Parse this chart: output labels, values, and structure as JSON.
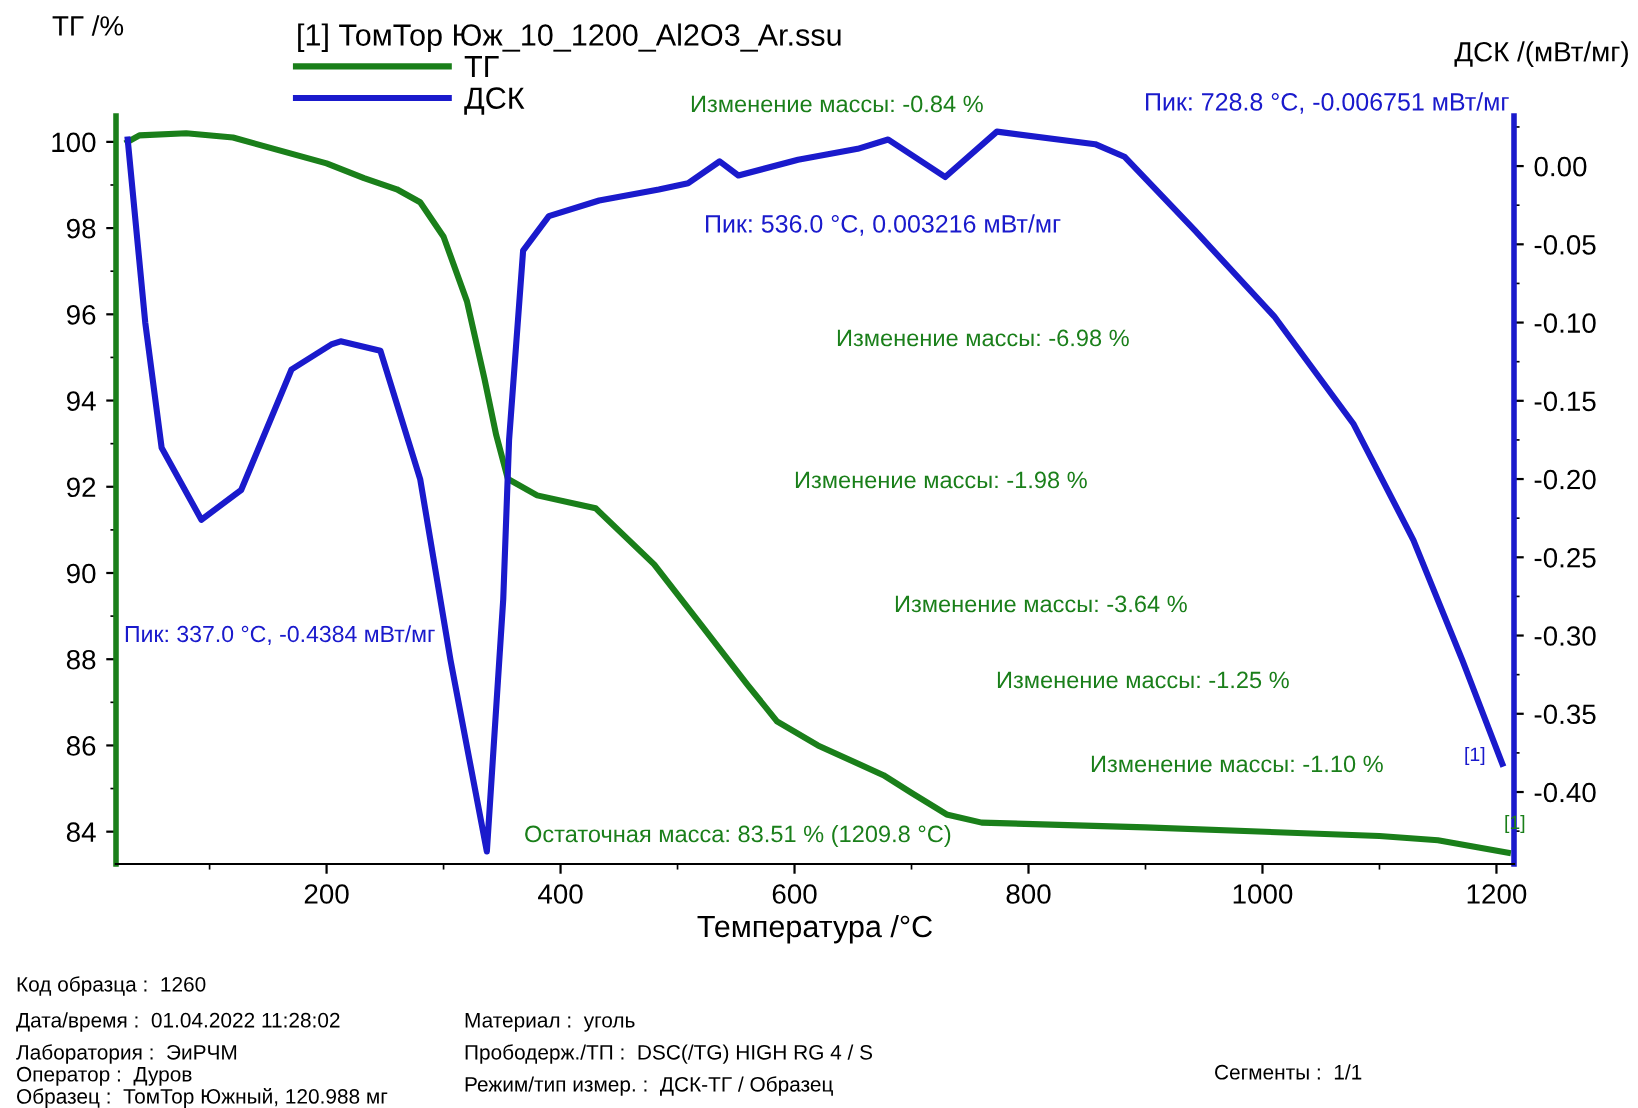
{
  "chart_data": {
    "type": "line",
    "legend_title": "[1] ТомТор Юж_10_1200_Al2O3_Ar.ssu",
    "xlabel": "Температура /°C",
    "ylabel": "ТГ /%",
    "y2label": "ДСК /(мВт/мг)",
    "xlim": [
      20,
      1215
    ],
    "ylim": [
      83.25,
      100.6
    ],
    "y2lim": [
      -0.446,
      0.032
    ],
    "xticks": [
      200,
      400,
      600,
      800,
      1000,
      1200
    ],
    "yticks": [
      84,
      86,
      88,
      90,
      92,
      94,
      96,
      98,
      100
    ],
    "y2ticks": [
      {
        "value": 0,
        "label": "0.00"
      },
      {
        "value": -0.05,
        "label": "-0.05"
      },
      {
        "value": -0.1,
        "label": "-0.10"
      },
      {
        "value": -0.15,
        "label": "-0.15"
      },
      {
        "value": -0.2,
        "label": "-0.20"
      },
      {
        "value": -0.25,
        "label": "-0.25"
      },
      {
        "value": -0.3,
        "label": "-0.30"
      },
      {
        "value": -0.35,
        "label": "-0.35"
      },
      {
        "value": -0.4,
        "label": "-0.40"
      }
    ],
    "grid": false,
    "legend": "top",
    "marker": "none",
    "line_style": "solid",
    "series": [
      {
        "name": "ТГ",
        "color": "#1a7f1a",
        "x": [
          30,
          40,
          80,
          120,
          200,
          232,
          260,
          280,
          300,
          320,
          335,
          345,
          355,
          380,
          430,
          480,
          520,
          560,
          585,
          620,
          676,
          700,
          730,
          760,
          900,
          1100,
          1150,
          1209.8
        ],
        "values": [
          100.0,
          100.15,
          100.2,
          100.1,
          99.5,
          99.16,
          98.9,
          98.6,
          97.8,
          96.3,
          94.5,
          93.2,
          92.18,
          91.8,
          91.5,
          90.2,
          88.8,
          87.4,
          86.56,
          86.0,
          85.31,
          84.9,
          84.4,
          84.21,
          84.1,
          83.9,
          83.8,
          83.51
        ]
      },
      {
        "name": "ДСК",
        "color": "#1a1acc",
        "axis": "y2",
        "x": [
          30,
          45,
          59,
          93,
          127,
          170,
          204,
          212,
          246,
          280,
          306,
          337,
          351,
          356,
          368,
          390,
          433,
          484,
          509,
          536,
          552,
          603,
          654,
          680,
          728.8,
          773,
          857,
          882,
          942,
          1010,
          1078,
          1129,
          1171,
          1205
        ],
        "values": [
          0.017,
          -0.1,
          -0.18,
          -0.226,
          -0.207,
          -0.13,
          -0.114,
          -0.112,
          -0.118,
          -0.2,
          -0.316,
          -0.438,
          -0.277,
          -0.175,
          -0.054,
          -0.032,
          -0.022,
          -0.015,
          -0.011,
          0.003,
          -0.006,
          0.004,
          0.011,
          0.017,
          -0.007,
          0.022,
          0.014,
          0.006,
          -0.041,
          -0.096,
          -0.165,
          -0.239,
          -0.316,
          -0.382
        ]
      }
    ],
    "annotations": [
      "Изменение массы: -0.84 %",
      "Изменение массы: -6.98 %",
      "Изменение массы: -1.98 %",
      "Изменение массы: -3.64 %",
      "Изменение массы: -1.25 %",
      "Изменение массы: -1.10 %",
      "Остаточная масса: 83.51 % (1209.8 °C)",
      "Пик: 337.0 °C, -0.4384 мВт/мг",
      "Пик: 536.0 °C, 0.003216 мВт/мг",
      "Пик: 728.8 °C, -0.006751 мВт/мг",
      "[1]",
      "[1]",
      "Код образца :  1260",
      "Дата/время :  01.04.2022 11:28:02",
      "Лаборатория :  ЭиРЧМ",
      "Оператор :  Дуров",
      "Образец :  ТомТор Южный, 120.988 мг",
      "Материал :  уголь",
      "Прободерж./ТП :  DSC(/TG) HIGH RG 4 / S",
      "Режим/тип измер. :  ДСК-ТГ / Образец",
      "Сегменты :  1/1"
    ]
  }
}
